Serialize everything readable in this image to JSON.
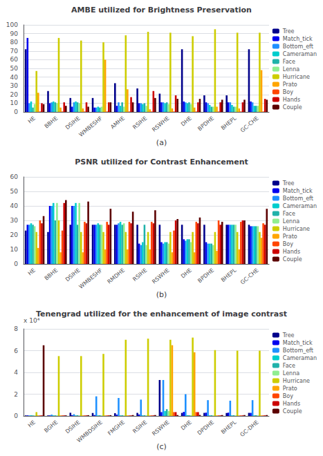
{
  "chart_data": [
    {
      "type": "bar",
      "title": "AMBE utilized for Brightness Preservation",
      "categories": [
        "HE",
        "BBHE",
        "DSIHE",
        "WMBESHF",
        "AMHE",
        "RSIHE",
        "RSWHE",
        "DHE",
        "BPDHE",
        "BHEPL",
        "GC-CHE"
      ],
      "series": [
        {
          "name": "Tree",
          "color": "#00008B",
          "values": [
            72,
            24,
            16,
            16,
            33,
            27,
            21,
            72,
            19,
            19,
            72
          ]
        },
        {
          "name": "Match_tick",
          "color": "#0000EE",
          "values": [
            85,
            10,
            6,
            5,
            7,
            10,
            11,
            12,
            11,
            11,
            12
          ]
        },
        {
          "name": "Bottom_eft",
          "color": "#1E90FF",
          "values": [
            10,
            11,
            11,
            5,
            11,
            10,
            11,
            11,
            10,
            11,
            11
          ]
        },
        {
          "name": "Cameraman",
          "color": "#00CDCD",
          "values": [
            12,
            12,
            12,
            6,
            7,
            9,
            10,
            10,
            8,
            8,
            7
          ]
        },
        {
          "name": "Face",
          "color": "#20B2AA",
          "values": [
            5,
            11,
            11,
            5,
            11,
            10,
            11,
            11,
            6,
            6,
            7
          ]
        },
        {
          "name": "Lenna",
          "color": "#90EE90",
          "values": [
            9,
            10,
            10,
            6,
            6,
            7,
            9,
            9,
            6,
            6,
            7
          ]
        },
        {
          "name": "Hurricane",
          "color": "#CDCD00",
          "values": [
            47,
            85,
            82,
            80,
            88,
            92,
            91,
            87,
            95,
            91,
            91
          ]
        },
        {
          "name": "Prato",
          "color": "#FFA500",
          "values": [
            22,
            5,
            4,
            60,
            26,
            3,
            4,
            5,
            6,
            4,
            48
          ]
        },
        {
          "name": "Boy",
          "color": "#FF4500",
          "values": [
            0.5,
            0.5,
            0.5,
            0.5,
            0.5,
            0.5,
            0.5,
            0.5,
            0.5,
            0.5,
            0.5
          ]
        },
        {
          "name": "Hands",
          "color": "#CC0000",
          "values": [
            10,
            11,
            11,
            11,
            17,
            24,
            19,
            11,
            11,
            11,
            15
          ]
        },
        {
          "name": "Couple",
          "color": "#5C0000",
          "values": [
            9,
            7,
            6,
            11,
            11,
            16,
            15,
            15,
            14,
            14,
            14
          ]
        }
      ],
      "ylim": [
        0,
        100
      ],
      "yticks": [
        0,
        10,
        20,
        30,
        40,
        50,
        60,
        70,
        80,
        90,
        100
      ],
      "grid": true,
      "legend": "upper right",
      "annotations": [
        "(a)"
      ]
    },
    {
      "type": "bar",
      "title": "PSNR utilized for Contrast Enhancement",
      "categories": [
        "HE",
        "BBHE",
        "DSIHE",
        "WMBESHF",
        "RMDHE",
        "RSIHE",
        "RSWHE",
        "DHE",
        "BPDHE",
        "BHEPL",
        "GC-CHE"
      ],
      "series": [
        {
          "name": "Tree",
          "color": "#00008B",
          "values": [
            23,
            22,
            27,
            27,
            27,
            27,
            27,
            27,
            27,
            27,
            27
          ]
        },
        {
          "name": "Match_tick",
          "color": "#0000EE",
          "values": [
            27,
            40,
            40,
            27,
            27,
            14,
            15,
            17,
            15,
            27,
            26
          ]
        },
        {
          "name": "Bottom_eft",
          "color": "#1E90FF",
          "values": [
            27,
            40,
            40,
            27,
            28,
            13,
            14,
            16,
            14,
            27,
            26
          ]
        },
        {
          "name": "Cameraman",
          "color": "#00CDCD",
          "values": [
            28,
            42,
            42,
            28,
            29,
            15,
            15,
            17,
            14,
            27,
            26
          ]
        },
        {
          "name": "Face",
          "color": "#20B2AA",
          "values": [
            27,
            30,
            27,
            27,
            27,
            27,
            15,
            17,
            14,
            27,
            26
          ]
        },
        {
          "name": "Lenna",
          "color": "#90EE90",
          "values": [
            26,
            42,
            42,
            27,
            28,
            13,
            14,
            15,
            13,
            27,
            26
          ]
        },
        {
          "name": "Hurricane",
          "color": "#CDCD00",
          "values": [
            22,
            30,
            22,
            22,
            22,
            22,
            22,
            22,
            22,
            22,
            22
          ]
        },
        {
          "name": "Prato",
          "color": "#FFA500",
          "values": [
            11,
            8,
            8,
            10,
            10,
            10,
            8,
            8,
            9,
            10,
            18
          ]
        },
        {
          "name": "Boy",
          "color": "#FF4500",
          "values": [
            30,
            23,
            29,
            29,
            29,
            29,
            23,
            29,
            30,
            29,
            28
          ]
        },
        {
          "name": "Hands",
          "color": "#CC0000",
          "values": [
            28,
            42,
            28,
            27,
            28,
            28,
            30,
            28,
            27,
            30,
            27
          ]
        },
        {
          "name": "Couple",
          "color": "#5C0000",
          "values": [
            33,
            44,
            43,
            38,
            36,
            37,
            31,
            32,
            29,
            30,
            38
          ]
        }
      ],
      "ylim": [
        0,
        60
      ],
      "yticks": [
        0,
        10,
        20,
        30,
        40,
        50,
        60
      ],
      "grid": true,
      "legend": "upper right",
      "annotations": [
        "(b)"
      ]
    },
    {
      "type": "bar",
      "title": "Tenengrad utilized for the enhancement of image contrast",
      "ylabel": "x 10⁴",
      "categories": [
        "HE",
        "BGHE",
        "DSIHE",
        "WMBDSIHE",
        "FMGHE",
        "RSIHE",
        "RSWHE",
        "DHE",
        "DPDHE",
        "BHEPL",
        "GC-DHE"
      ],
      "series": [
        {
          "name": "Tree",
          "color": "#00008B",
          "values": [
            0.05,
            0.05,
            0.29,
            0.27,
            0.25,
            0.28,
            3.3,
            0.28,
            0.28,
            0.27,
            0.28
          ]
        },
        {
          "name": "Match_tick",
          "color": "#0000EE",
          "values": [
            0.05,
            0.05,
            0.07,
            0.08,
            0.12,
            0.13,
            0.35,
            0.37,
            0.3,
            0.3,
            0.28
          ]
        },
        {
          "name": "Bottom_eft",
          "color": "#1E90FF",
          "values": [
            0.05,
            0.12,
            0.16,
            1.8,
            1.65,
            1.5,
            3.3,
            2.0,
            1.45,
            1.4,
            1.45
          ]
        },
        {
          "name": "Cameraman",
          "color": "#00CDCD",
          "values": [
            0.06,
            0.05,
            0.05,
            0.05,
            0.05,
            0.05,
            0.45,
            0.06,
            0.05,
            0.05,
            0.05
          ]
        },
        {
          "name": "Face",
          "color": "#20B2AA",
          "values": [
            0.05,
            0.05,
            0.06,
            0.06,
            0.06,
            0.06,
            0.62,
            0.06,
            0.06,
            0.06,
            0.06
          ]
        },
        {
          "name": "Lenna",
          "color": "#90EE90",
          "values": [
            0.05,
            0.05,
            0.05,
            0.05,
            0.05,
            0.05,
            0.45,
            0.06,
            0.05,
            0.05,
            0.05
          ]
        },
        {
          "name": "Hurricane",
          "color": "#CDCD00",
          "values": [
            0.35,
            5.5,
            5.5,
            5.7,
            7.0,
            7.1,
            7.0,
            7.2,
            6.05,
            6.0,
            6.0
          ]
        },
        {
          "name": "Prato",
          "color": "#FFA500",
          "values": [
            0.05,
            0.05,
            0.05,
            0.05,
            0.05,
            0.05,
            6.5,
            5.85,
            0.05,
            0.05,
            0.05
          ]
        },
        {
          "name": "Boy",
          "color": "#FF4500",
          "values": [
            0.05,
            0.05,
            0.05,
            0.05,
            0.05,
            0.05,
            0.35,
            0.35,
            0.05,
            0.05,
            0.05
          ]
        },
        {
          "name": "Hands",
          "color": "#CC0000",
          "values": [
            0.05,
            0.05,
            0.05,
            0.05,
            0.05,
            0.05,
            0.35,
            0.35,
            0.05,
            0.05,
            0.05
          ]
        },
        {
          "name": "Couple",
          "color": "#5C0000",
          "values": [
            6.5,
            0.05,
            0.07,
            0.07,
            0.08,
            0.08,
            0.08,
            0.09,
            0.08,
            0.08,
            0.08
          ]
        }
      ],
      "ylim": [
        0,
        8
      ],
      "yticks": [
        0,
        2,
        4,
        6,
        8
      ],
      "grid": true,
      "legend": "upper right",
      "annotations": [
        "(c)"
      ]
    }
  ]
}
